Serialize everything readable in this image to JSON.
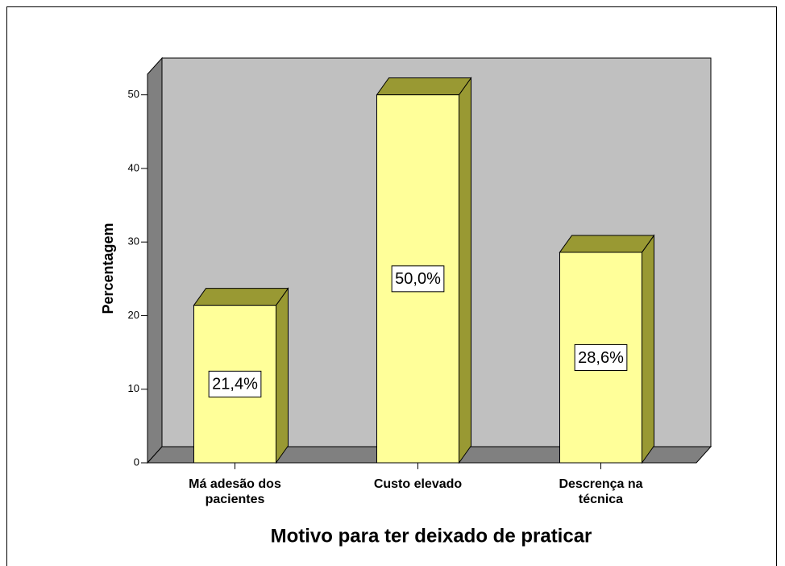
{
  "chart_data": {
    "type": "bar3d",
    "categories": [
      "Má adesão dos pacientes",
      "Custo elevado",
      "Descrença na técnica"
    ],
    "values": [
      21.4,
      50.0,
      28.6
    ],
    "value_labels": [
      "21,4%",
      "50,0%",
      "28,6%"
    ],
    "color": "#ffff99",
    "side_color": "#999933",
    "xlabel": "Motivo para ter deixado de praticar",
    "ylabel": "Percentagem",
    "ylim": [
      0,
      55
    ],
    "yticks": [
      0,
      10,
      20,
      30,
      40,
      50
    ]
  }
}
